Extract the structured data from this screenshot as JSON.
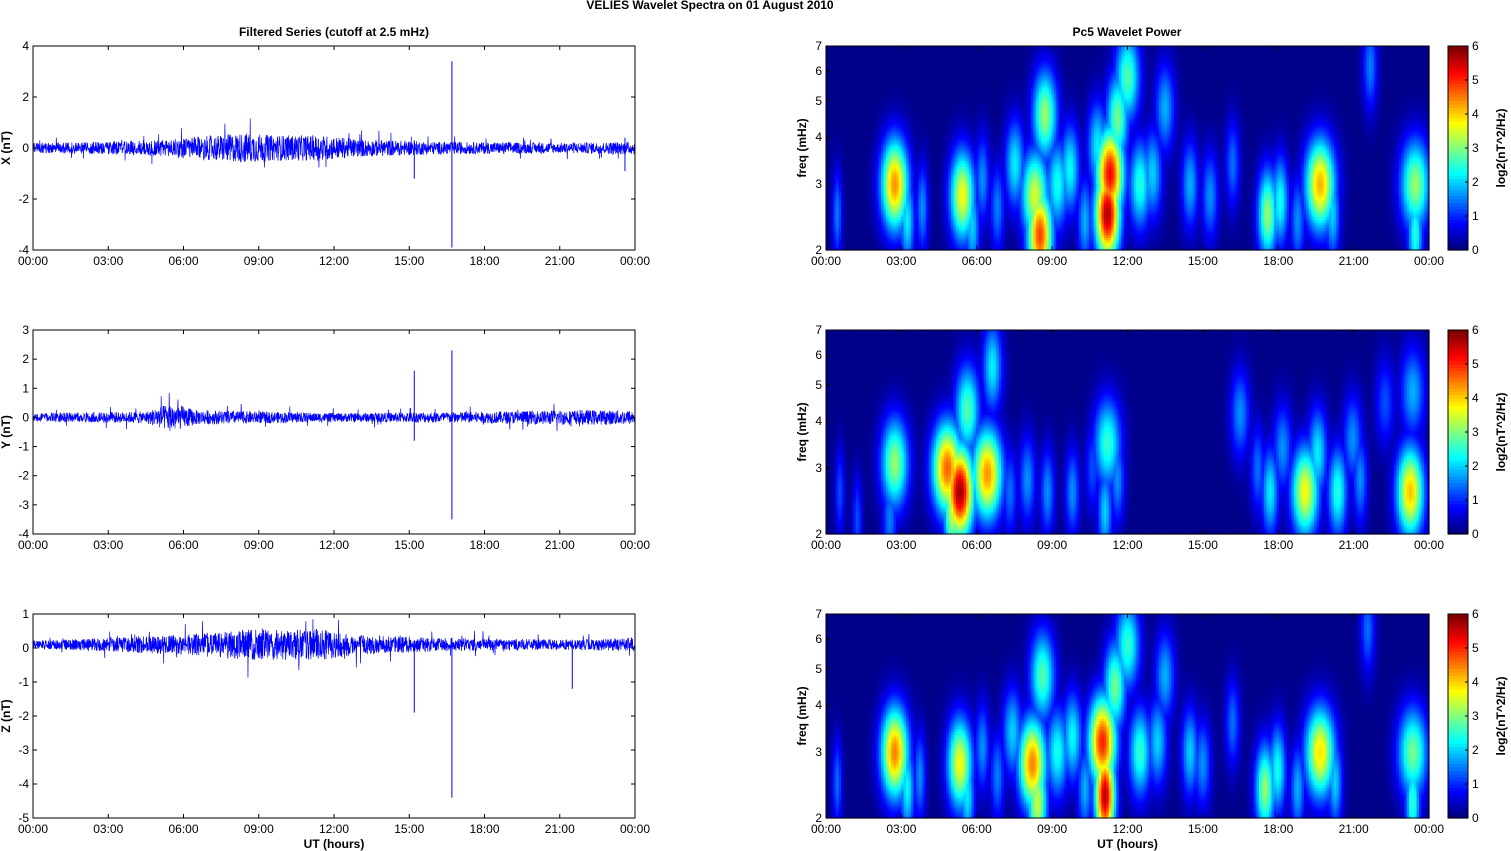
{
  "figure": {
    "suptitle": "VELIES Wavelet Spectra on 01 August    2010",
    "left_title": "Filtered Series (cutoff at 2.5 mHz)",
    "right_title": "Pc5 Wavelet Power",
    "xlabel": "UT (hours)",
    "colorbar_label": "log2(nT^2/Hz)"
  },
  "colors": {
    "trace": "#0000ff",
    "background_power": "#00008f"
  },
  "chart_data": [
    {
      "type": "line",
      "id": "x-series",
      "title": "Filtered Series (cutoff at 2.5 mHz)",
      "ylabel": "X (nT)",
      "xlabel": "",
      "xlim": [
        0,
        24
      ],
      "ylim": [
        -4,
        4
      ],
      "xticks": [
        "00:00",
        "03:00",
        "06:00",
        "09:00",
        "12:00",
        "15:00",
        "18:00",
        "21:00",
        "00:00"
      ],
      "yticks": [
        -4,
        -2,
        0,
        2,
        4
      ],
      "envelope": [
        [
          0,
          0.2
        ],
        [
          3,
          0.25
        ],
        [
          5.5,
          0.35
        ],
        [
          8.5,
          0.6
        ],
        [
          9.5,
          0.5
        ],
        [
          11.5,
          0.5
        ],
        [
          13,
          0.35
        ],
        [
          16,
          0.25
        ],
        [
          21,
          0.2
        ],
        [
          24,
          0.25
        ]
      ],
      "spikes": [
        [
          16.7,
          3.4,
          -3.9
        ],
        [
          15.2,
          0.3,
          -1.2
        ],
        [
          23.6,
          0.4,
          -0.9
        ]
      ]
    },
    {
      "type": "line",
      "id": "y-series",
      "title": "",
      "ylabel": "Y (nT)",
      "xlabel": "",
      "xlim": [
        0,
        24
      ],
      "ylim": [
        -4,
        3
      ],
      "xticks": [
        "00:00",
        "03:00",
        "06:00",
        "09:00",
        "12:00",
        "15:00",
        "18:00",
        "21:00",
        "00:00"
      ],
      "yticks": [
        -4,
        -3,
        -2,
        -1,
        0,
        1,
        2,
        3
      ],
      "envelope": [
        [
          0,
          0.15
        ],
        [
          4.5,
          0.2
        ],
        [
          5.5,
          0.5
        ],
        [
          6.5,
          0.25
        ],
        [
          12,
          0.15
        ],
        [
          18,
          0.2
        ],
        [
          21,
          0.25
        ],
        [
          24,
          0.25
        ]
      ],
      "spikes": [
        [
          16.7,
          2.3,
          -3.5
        ],
        [
          15.2,
          1.6,
          -0.8
        ],
        [
          24,
          0.6,
          -0.6
        ]
      ]
    },
    {
      "type": "line",
      "id": "z-series",
      "title": "",
      "ylabel": "Z (nT)",
      "xlabel": "UT (hours)",
      "xlim": [
        0,
        24
      ],
      "ylim": [
        -5,
        1
      ],
      "xticks": [
        "00:00",
        "03:00",
        "06:00",
        "09:00",
        "12:00",
        "15:00",
        "18:00",
        "21:00",
        "00:00"
      ],
      "yticks": [
        -5,
        -4,
        -3,
        -2,
        -1,
        0,
        1
      ],
      "offset": 0.1,
      "envelope": [
        [
          0,
          0.12
        ],
        [
          3,
          0.2
        ],
        [
          6,
          0.3
        ],
        [
          8.5,
          0.45
        ],
        [
          11.5,
          0.45
        ],
        [
          13,
          0.3
        ],
        [
          16,
          0.2
        ],
        [
          21,
          0.15
        ],
        [
          24,
          0.2
        ]
      ],
      "spikes": [
        [
          16.7,
          0.3,
          -4.4
        ],
        [
          15.2,
          0.2,
          -1.9
        ],
        [
          21.5,
          0.2,
          -1.2
        ]
      ]
    },
    {
      "type": "heatmap",
      "id": "x-power",
      "title": "Pc5 Wavelet Power",
      "ylabel": "freq (mHz)",
      "xlabel": "",
      "xlim": [
        0,
        24
      ],
      "ylim": [
        2,
        7
      ],
      "yscale": "log",
      "yticks": [
        2,
        3,
        4,
        5,
        6,
        7
      ],
      "xticks": [
        "00:00",
        "03:00",
        "06:00",
        "09:00",
        "12:00",
        "15:00",
        "18:00",
        "21:00",
        "00:00"
      ],
      "colorbar": {
        "label": "log2(nT^2/Hz)",
        "range": [
          0,
          6
        ],
        "ticks": [
          0,
          1,
          2,
          3,
          4,
          5,
          6
        ],
        "colormap": "jet"
      },
      "blobs": [
        [
          0.4,
          2.5,
          1.5,
          0.2
        ],
        [
          2.7,
          3.0,
          4.5,
          0.55
        ],
        [
          3.2,
          2.4,
          2.2,
          0.3
        ],
        [
          3.8,
          2.6,
          1.6,
          0.25
        ],
        [
          5.4,
          2.8,
          3.8,
          0.5
        ],
        [
          5.8,
          2.3,
          2.0,
          0.3
        ],
        [
          6.2,
          3.1,
          1.6,
          0.3
        ],
        [
          6.8,
          2.6,
          1.5,
          0.3
        ],
        [
          7.5,
          3.4,
          2.2,
          0.4
        ],
        [
          8.3,
          2.8,
          3.6,
          0.55
        ],
        [
          8.5,
          2.2,
          5.0,
          0.5
        ],
        [
          8.7,
          4.6,
          3.2,
          0.5
        ],
        [
          9.2,
          3.0,
          2.4,
          0.45
        ],
        [
          9.7,
          3.3,
          2.3,
          0.4
        ],
        [
          10.3,
          2.4,
          1.8,
          0.3
        ],
        [
          10.8,
          3.8,
          2.2,
          0.4
        ],
        [
          11.2,
          2.5,
          5.9,
          0.5
        ],
        [
          11.3,
          3.2,
          5.4,
          0.55
        ],
        [
          11.6,
          4.5,
          3.0,
          0.45
        ],
        [
          12.0,
          5.8,
          2.8,
          0.5
        ],
        [
          12.5,
          3.0,
          2.5,
          0.45
        ],
        [
          13.0,
          3.2,
          2.0,
          0.4
        ],
        [
          13.5,
          4.8,
          1.8,
          0.4
        ],
        [
          14.5,
          3.0,
          1.8,
          0.35
        ],
        [
          15.3,
          2.8,
          1.6,
          0.35
        ],
        [
          16.2,
          3.4,
          1.4,
          0.3
        ],
        [
          17.6,
          2.5,
          3.2,
          0.4
        ],
        [
          18.1,
          2.7,
          2.4,
          0.35
        ],
        [
          18.8,
          2.4,
          1.6,
          0.3
        ],
        [
          19.7,
          3.0,
          4.3,
          0.6
        ],
        [
          20.2,
          2.5,
          2.0,
          0.3
        ],
        [
          21.7,
          6.2,
          1.5,
          0.3
        ],
        [
          23.5,
          3.0,
          3.2,
          0.6
        ],
        [
          23.5,
          2.2,
          2.5,
          0.3
        ]
      ]
    },
    {
      "type": "heatmap",
      "id": "y-power",
      "title": "",
      "ylabel": "freq (mHz)",
      "xlabel": "",
      "xlim": [
        0,
        24
      ],
      "ylim": [
        2,
        7
      ],
      "yscale": "log",
      "yticks": [
        2,
        3,
        4,
        5,
        6,
        7
      ],
      "xticks": [
        "00:00",
        "03:00",
        "06:00",
        "09:00",
        "12:00",
        "15:00",
        "18:00",
        "21:00",
        "00:00"
      ],
      "colorbar": {
        "label": "log2(nT^2/Hz)",
        "range": [
          0,
          6
        ],
        "ticks": [
          0,
          1,
          2,
          3,
          4,
          5,
          6
        ],
        "colormap": "jet"
      },
      "blobs": [
        [
          0.5,
          2.6,
          1.2,
          0.2
        ],
        [
          1.2,
          2.2,
          1.2,
          0.2
        ],
        [
          2.7,
          3.1,
          3.2,
          0.55
        ],
        [
          2.5,
          2.2,
          1.5,
          0.3
        ],
        [
          4.8,
          3.0,
          4.8,
          0.6
        ],
        [
          5.0,
          2.3,
          3.5,
          0.35
        ],
        [
          5.3,
          2.6,
          6.0,
          0.55
        ],
        [
          5.6,
          4.3,
          2.8,
          0.5
        ],
        [
          6.4,
          2.9,
          4.5,
          0.6
        ],
        [
          6.6,
          5.6,
          2.2,
          0.4
        ],
        [
          7.3,
          2.6,
          1.4,
          0.3
        ],
        [
          8.0,
          2.8,
          1.6,
          0.35
        ],
        [
          8.8,
          2.6,
          1.6,
          0.3
        ],
        [
          9.8,
          2.6,
          1.6,
          0.3
        ],
        [
          10.6,
          3.0,
          1.2,
          0.3
        ],
        [
          11.2,
          3.5,
          2.6,
          0.55
        ],
        [
          11.1,
          2.3,
          2.0,
          0.3
        ],
        [
          11.6,
          2.8,
          1.6,
          0.3
        ],
        [
          16.5,
          4.2,
          1.6,
          0.4
        ],
        [
          17.2,
          3.0,
          1.4,
          0.3
        ],
        [
          17.7,
          2.6,
          2.2,
          0.35
        ],
        [
          18.2,
          3.4,
          1.6,
          0.4
        ],
        [
          19.1,
          2.6,
          3.8,
          0.55
        ],
        [
          19.6,
          3.3,
          2.2,
          0.4
        ],
        [
          20.4,
          2.6,
          2.5,
          0.4
        ],
        [
          21.0,
          3.6,
          1.6,
          0.4
        ],
        [
          21.3,
          2.8,
          1.6,
          0.3
        ],
        [
          22.3,
          4.5,
          1.2,
          0.4
        ],
        [
          23.3,
          2.6,
          4.2,
          0.55
        ],
        [
          23.4,
          4.8,
          1.8,
          0.5
        ]
      ]
    },
    {
      "type": "heatmap",
      "id": "z-power",
      "title": "",
      "ylabel": "freq (mHz)",
      "xlabel": "UT (hours)",
      "xlim": [
        0,
        24
      ],
      "ylim": [
        2,
        7
      ],
      "yscale": "log",
      "yticks": [
        2,
        3,
        4,
        5,
        6,
        7
      ],
      "xticks": [
        "00:00",
        "03:00",
        "06:00",
        "09:00",
        "12:00",
        "15:00",
        "18:00",
        "21:00",
        "00:00"
      ],
      "colorbar": {
        "label": "log2(nT^2/Hz)",
        "range": [
          0,
          6
        ],
        "ticks": [
          0,
          1,
          2,
          3,
          4,
          5,
          6
        ],
        "colormap": "jet"
      },
      "blobs": [
        [
          0.4,
          2.5,
          1.4,
          0.2
        ],
        [
          2.7,
          3.0,
          4.6,
          0.55
        ],
        [
          3.2,
          2.4,
          2.3,
          0.3
        ],
        [
          3.7,
          2.6,
          1.6,
          0.25
        ],
        [
          5.3,
          2.8,
          3.8,
          0.5
        ],
        [
          5.6,
          2.3,
          2.2,
          0.3
        ],
        [
          6.2,
          3.1,
          1.6,
          0.3
        ],
        [
          6.8,
          2.6,
          1.5,
          0.3
        ],
        [
          7.4,
          3.4,
          2.0,
          0.4
        ],
        [
          8.2,
          2.8,
          4.6,
          0.55
        ],
        [
          8.4,
          2.2,
          3.5,
          0.4
        ],
        [
          8.6,
          4.8,
          2.8,
          0.5
        ],
        [
          9.2,
          3.0,
          2.4,
          0.45
        ],
        [
          9.8,
          3.3,
          2.3,
          0.4
        ],
        [
          10.3,
          2.4,
          1.8,
          0.3
        ],
        [
          11.0,
          3.2,
          5.2,
          0.55
        ],
        [
          11.1,
          2.3,
          5.8,
          0.4
        ],
        [
          11.5,
          4.5,
          3.0,
          0.45
        ],
        [
          12.0,
          5.8,
          2.6,
          0.5
        ],
        [
          12.5,
          3.0,
          2.6,
          0.45
        ],
        [
          13.2,
          3.2,
          2.0,
          0.4
        ],
        [
          13.5,
          4.8,
          1.8,
          0.4
        ],
        [
          14.5,
          3.0,
          2.0,
          0.35
        ],
        [
          15.0,
          2.8,
          1.6,
          0.35
        ],
        [
          16.2,
          3.6,
          1.4,
          0.3
        ],
        [
          17.5,
          2.4,
          3.2,
          0.4
        ],
        [
          18.0,
          2.7,
          2.4,
          0.35
        ],
        [
          18.8,
          2.4,
          1.8,
          0.3
        ],
        [
          19.7,
          3.0,
          4.0,
          0.6
        ],
        [
          20.3,
          2.5,
          2.0,
          0.3
        ],
        [
          21.6,
          6.4,
          1.4,
          0.3
        ],
        [
          23.4,
          3.0,
          3.0,
          0.6
        ],
        [
          23.4,
          2.2,
          2.6,
          0.3
        ]
      ]
    }
  ]
}
